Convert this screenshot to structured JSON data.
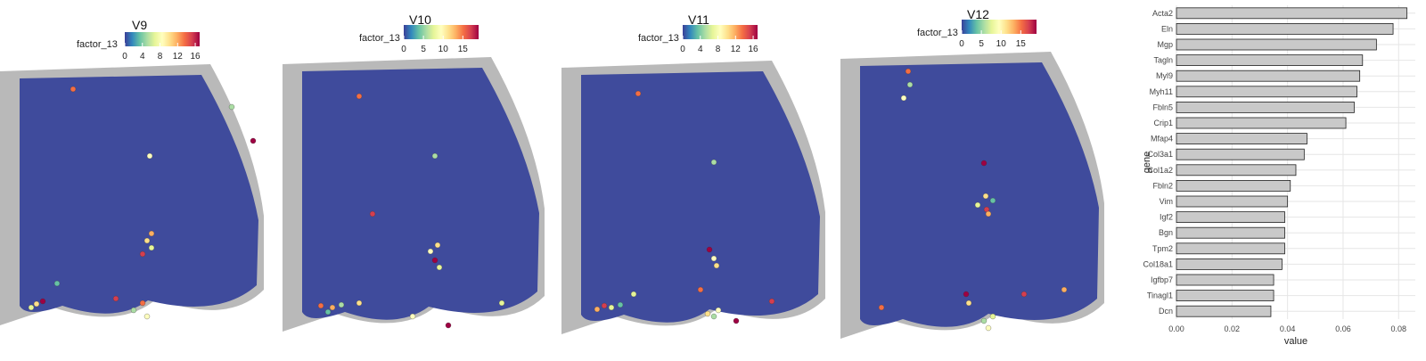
{
  "colors": {
    "background_spot": "#3f4b9c",
    "tissue_gray": "#7f7f7f",
    "bar_fill": "#c9c9c9",
    "bar_stroke": "#222222",
    "grid": "#e6e6e6"
  },
  "colormap": [
    "#3b3f98",
    "#3288bd",
    "#66c2a5",
    "#abdda4",
    "#e6f598",
    "#ffffbf",
    "#fee08b",
    "#fdae61",
    "#f46d43",
    "#d53e4f",
    "#9e0142"
  ],
  "chart_data": [
    {
      "type": "heatmap",
      "title": "V9",
      "legend_title": "factor_13",
      "legend_ticks": [
        "0",
        "4",
        "8",
        "12",
        "16"
      ],
      "legend_range": [
        0,
        17
      ]
    },
    {
      "type": "heatmap",
      "title": "V10",
      "legend_title": "factor_13",
      "legend_ticks": [
        "0",
        "5",
        "10",
        "15"
      ],
      "legend_range": [
        0,
        19
      ]
    },
    {
      "type": "heatmap",
      "title": "V11",
      "legend_title": "factor_13",
      "legend_ticks": [
        "0",
        "4",
        "8",
        "12",
        "16"
      ],
      "legend_range": [
        0,
        17
      ]
    },
    {
      "type": "heatmap",
      "title": "V12",
      "legend_title": "factor_13",
      "legend_ticks": [
        "0",
        "5",
        "10",
        "15"
      ],
      "legend_range": [
        0,
        19
      ]
    },
    {
      "type": "bar",
      "orientation": "horizontal",
      "xlabel": "value",
      "ylabel": "gene",
      "xlim": [
        0,
        0.086
      ],
      "xticks": [
        "0.00",
        "0.02",
        "0.04",
        "0.06",
        "0.08"
      ],
      "grid": true,
      "categories": [
        "Acta2",
        "Eln",
        "Mgp",
        "Tagln",
        "Myl9",
        "Myh11",
        "Fbln5",
        "Crip1",
        "Mfap4",
        "Col3a1",
        "Col1a2",
        "Fbln2",
        "Vim",
        "Igf2",
        "Bgn",
        "Tpm2",
        "Col18a1",
        "Igfbp7",
        "Tinagl1",
        "Dcn"
      ],
      "values": [
        0.083,
        0.078,
        0.072,
        0.067,
        0.066,
        0.065,
        0.064,
        0.061,
        0.047,
        0.046,
        0.043,
        0.041,
        0.04,
        0.039,
        0.039,
        0.039,
        0.038,
        0.035,
        0.035,
        0.034
      ]
    }
  ]
}
